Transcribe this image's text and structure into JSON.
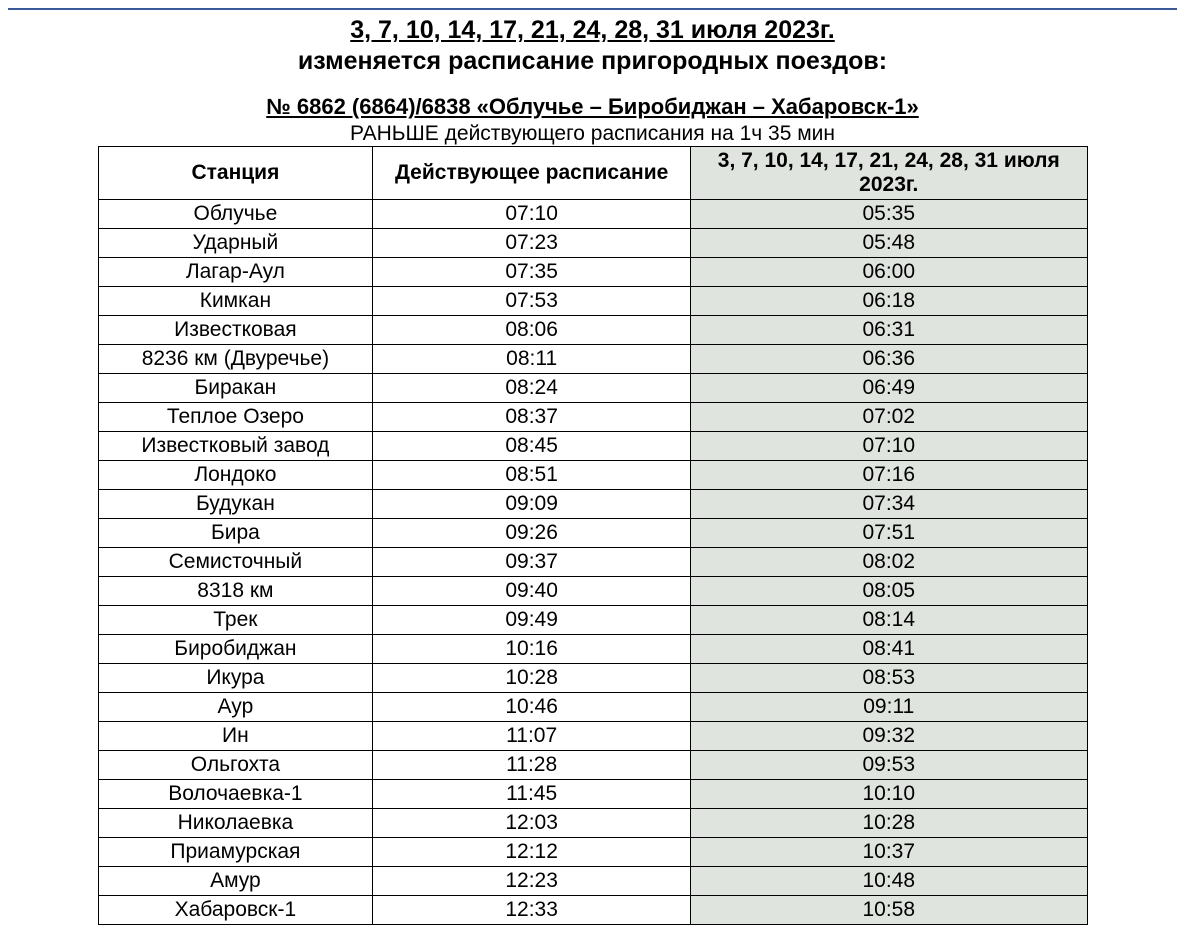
{
  "heading": {
    "dates_line": "3, 7, 10, 14, 17, 21, 24, 28, 31 июля 2023г.",
    "changes_line": "изменяется расписание пригородных поездов:",
    "route_line": "№ 6862 (6864)/6838 «Облучье – Биробиджан –  Хабаровск-1»",
    "offset_line": "РАНЬШЕ действующего расписания на 1ч 35 мин"
  },
  "table": {
    "columns": {
      "station": "Станция",
      "current": "Действующее расписание",
      "new": "3, 7, 10, 14, 17, 21, 24, 28, 31 июля 2023г."
    },
    "rows": [
      {
        "station": "Облучье",
        "current": "07:10",
        "new": "05:35"
      },
      {
        "station": "Ударный",
        "current": "07:23",
        "new": "05:48"
      },
      {
        "station": "Лагар-Аул",
        "current": "07:35",
        "new": "06:00"
      },
      {
        "station": "Кимкан",
        "current": "07:53",
        "new": "06:18"
      },
      {
        "station": "Известковая",
        "current": "08:06",
        "new": "06:31"
      },
      {
        "station": "8236 км (Двуречье)",
        "current": "08:11",
        "new": "06:36"
      },
      {
        "station": "Биракан",
        "current": "08:24",
        "new": "06:49"
      },
      {
        "station": "Теплое Озеро",
        "current": "08:37",
        "new": "07:02"
      },
      {
        "station": "Известковый завод",
        "current": "08:45",
        "new": "07:10"
      },
      {
        "station": "Лондоко",
        "current": "08:51",
        "new": "07:16"
      },
      {
        "station": "Будукан",
        "current": "09:09",
        "new": "07:34"
      },
      {
        "station": "Бира",
        "current": "09:26",
        "new": "07:51"
      },
      {
        "station": "Семисточный",
        "current": "09:37",
        "new": "08:02"
      },
      {
        "station": "8318 км",
        "current": "09:40",
        "new": "08:05"
      },
      {
        "station": "Трек",
        "current": "09:49",
        "new": "08:14"
      },
      {
        "station": "Биробиджан",
        "current": "10:16",
        "new": "08:41"
      },
      {
        "station": "Икура",
        "current": "10:28",
        "new": "08:53"
      },
      {
        "station": "Аур",
        "current": "10:46",
        "new": "09:11"
      },
      {
        "station": "Ин",
        "current": "11:07",
        "new": "09:32"
      },
      {
        "station": "Ольгохта",
        "current": "11:28",
        "new": "09:53"
      },
      {
        "station": "Волочаевка-1",
        "current": "11:45",
        "new": "10:10"
      },
      {
        "station": "Николаевка",
        "current": "12:03",
        "new": "10:28"
      },
      {
        "station": "Приамурская",
        "current": "12:12",
        "new": "10:37"
      },
      {
        "station": "Амур",
        "current": "12:23",
        "new": "10:48"
      },
      {
        "station": "Хабаровск-1",
        "current": "12:33",
        "new": "10:58"
      }
    ],
    "style": {
      "border_color": "#000000",
      "new_column_bg": "#dfe4de",
      "font_size_pt": 16
    }
  }
}
